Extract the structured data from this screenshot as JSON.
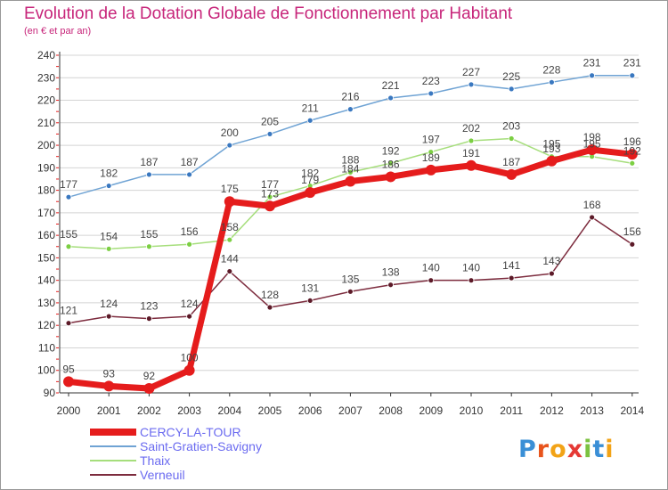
{
  "title": "Evolution de la Dotation Globale de Fonctionnement par Habitant",
  "subtitle": "(en € et par an)",
  "colors": {
    "title": "#c7257a",
    "grid": "#d4d4d4",
    "axis": "#333333",
    "legend_text": "#6b6bf0"
  },
  "chart_data": {
    "type": "line",
    "title": "Evolution de la Dotation Globale de Fonctionnement par Habitant",
    "subtitle": "(en € et par an)",
    "xlabel": "",
    "ylabel": "",
    "x": [
      2000,
      2001,
      2002,
      2003,
      2004,
      2005,
      2006,
      2007,
      2008,
      2009,
      2010,
      2011,
      2012,
      2013,
      2014
    ],
    "ylim": [
      90,
      240
    ],
    "yticks": [
      90,
      100,
      110,
      120,
      130,
      140,
      150,
      160,
      170,
      180,
      190,
      200,
      210,
      220,
      230,
      240
    ],
    "grid": true,
    "legend_position": "bottom-left",
    "series": [
      {
        "name": "Saint-Gratien-Savigny",
        "color": "#6fa3d4",
        "marker": "#3a78c0",
        "values": [
          177,
          182,
          187,
          187,
          200,
          205,
          211,
          216,
          221,
          223,
          227,
          225,
          228,
          231,
          231
        ]
      },
      {
        "name": "Thaix",
        "color": "#a6de7c",
        "marker": "#7ccf43",
        "values": [
          155,
          154,
          155,
          156,
          158,
          177,
          182,
          188,
          192,
          197,
          202,
          203,
          195,
          195,
          192
        ]
      },
      {
        "name": "Verneuil",
        "color": "#7d2c3e",
        "marker": "#5c1a28",
        "values": [
          121,
          124,
          123,
          124,
          144,
          128,
          131,
          135,
          138,
          140,
          140,
          141,
          143,
          168,
          156
        ]
      },
      {
        "name": "CERCY-LA-TOUR",
        "color": "#e51c1c",
        "marker": "#e51c1c",
        "values": [
          95,
          93,
          92,
          100,
          175,
          173,
          179,
          184,
          186,
          189,
          191,
          187,
          193,
          198,
          196
        ]
      }
    ]
  },
  "legend": [
    {
      "name": "CERCY-LA-TOUR",
      "color": "#e51c1c"
    },
    {
      "name": "Saint-Gratien-Savigny",
      "color": "#6fa3d4"
    },
    {
      "name": "Thaix",
      "color": "#a6de7c"
    },
    {
      "name": "Verneuil",
      "color": "#7d2c3e"
    }
  ],
  "logo": {
    "text": "Proxiti",
    "letters": [
      "P",
      "r",
      "o",
      "x",
      "i",
      "t",
      "i"
    ],
    "letter_colors": [
      "#3a8fd6",
      "#e8541c",
      "#f2a317",
      "#e53935",
      "#7cc241",
      "#3a8fd6",
      "#f2a317"
    ]
  }
}
